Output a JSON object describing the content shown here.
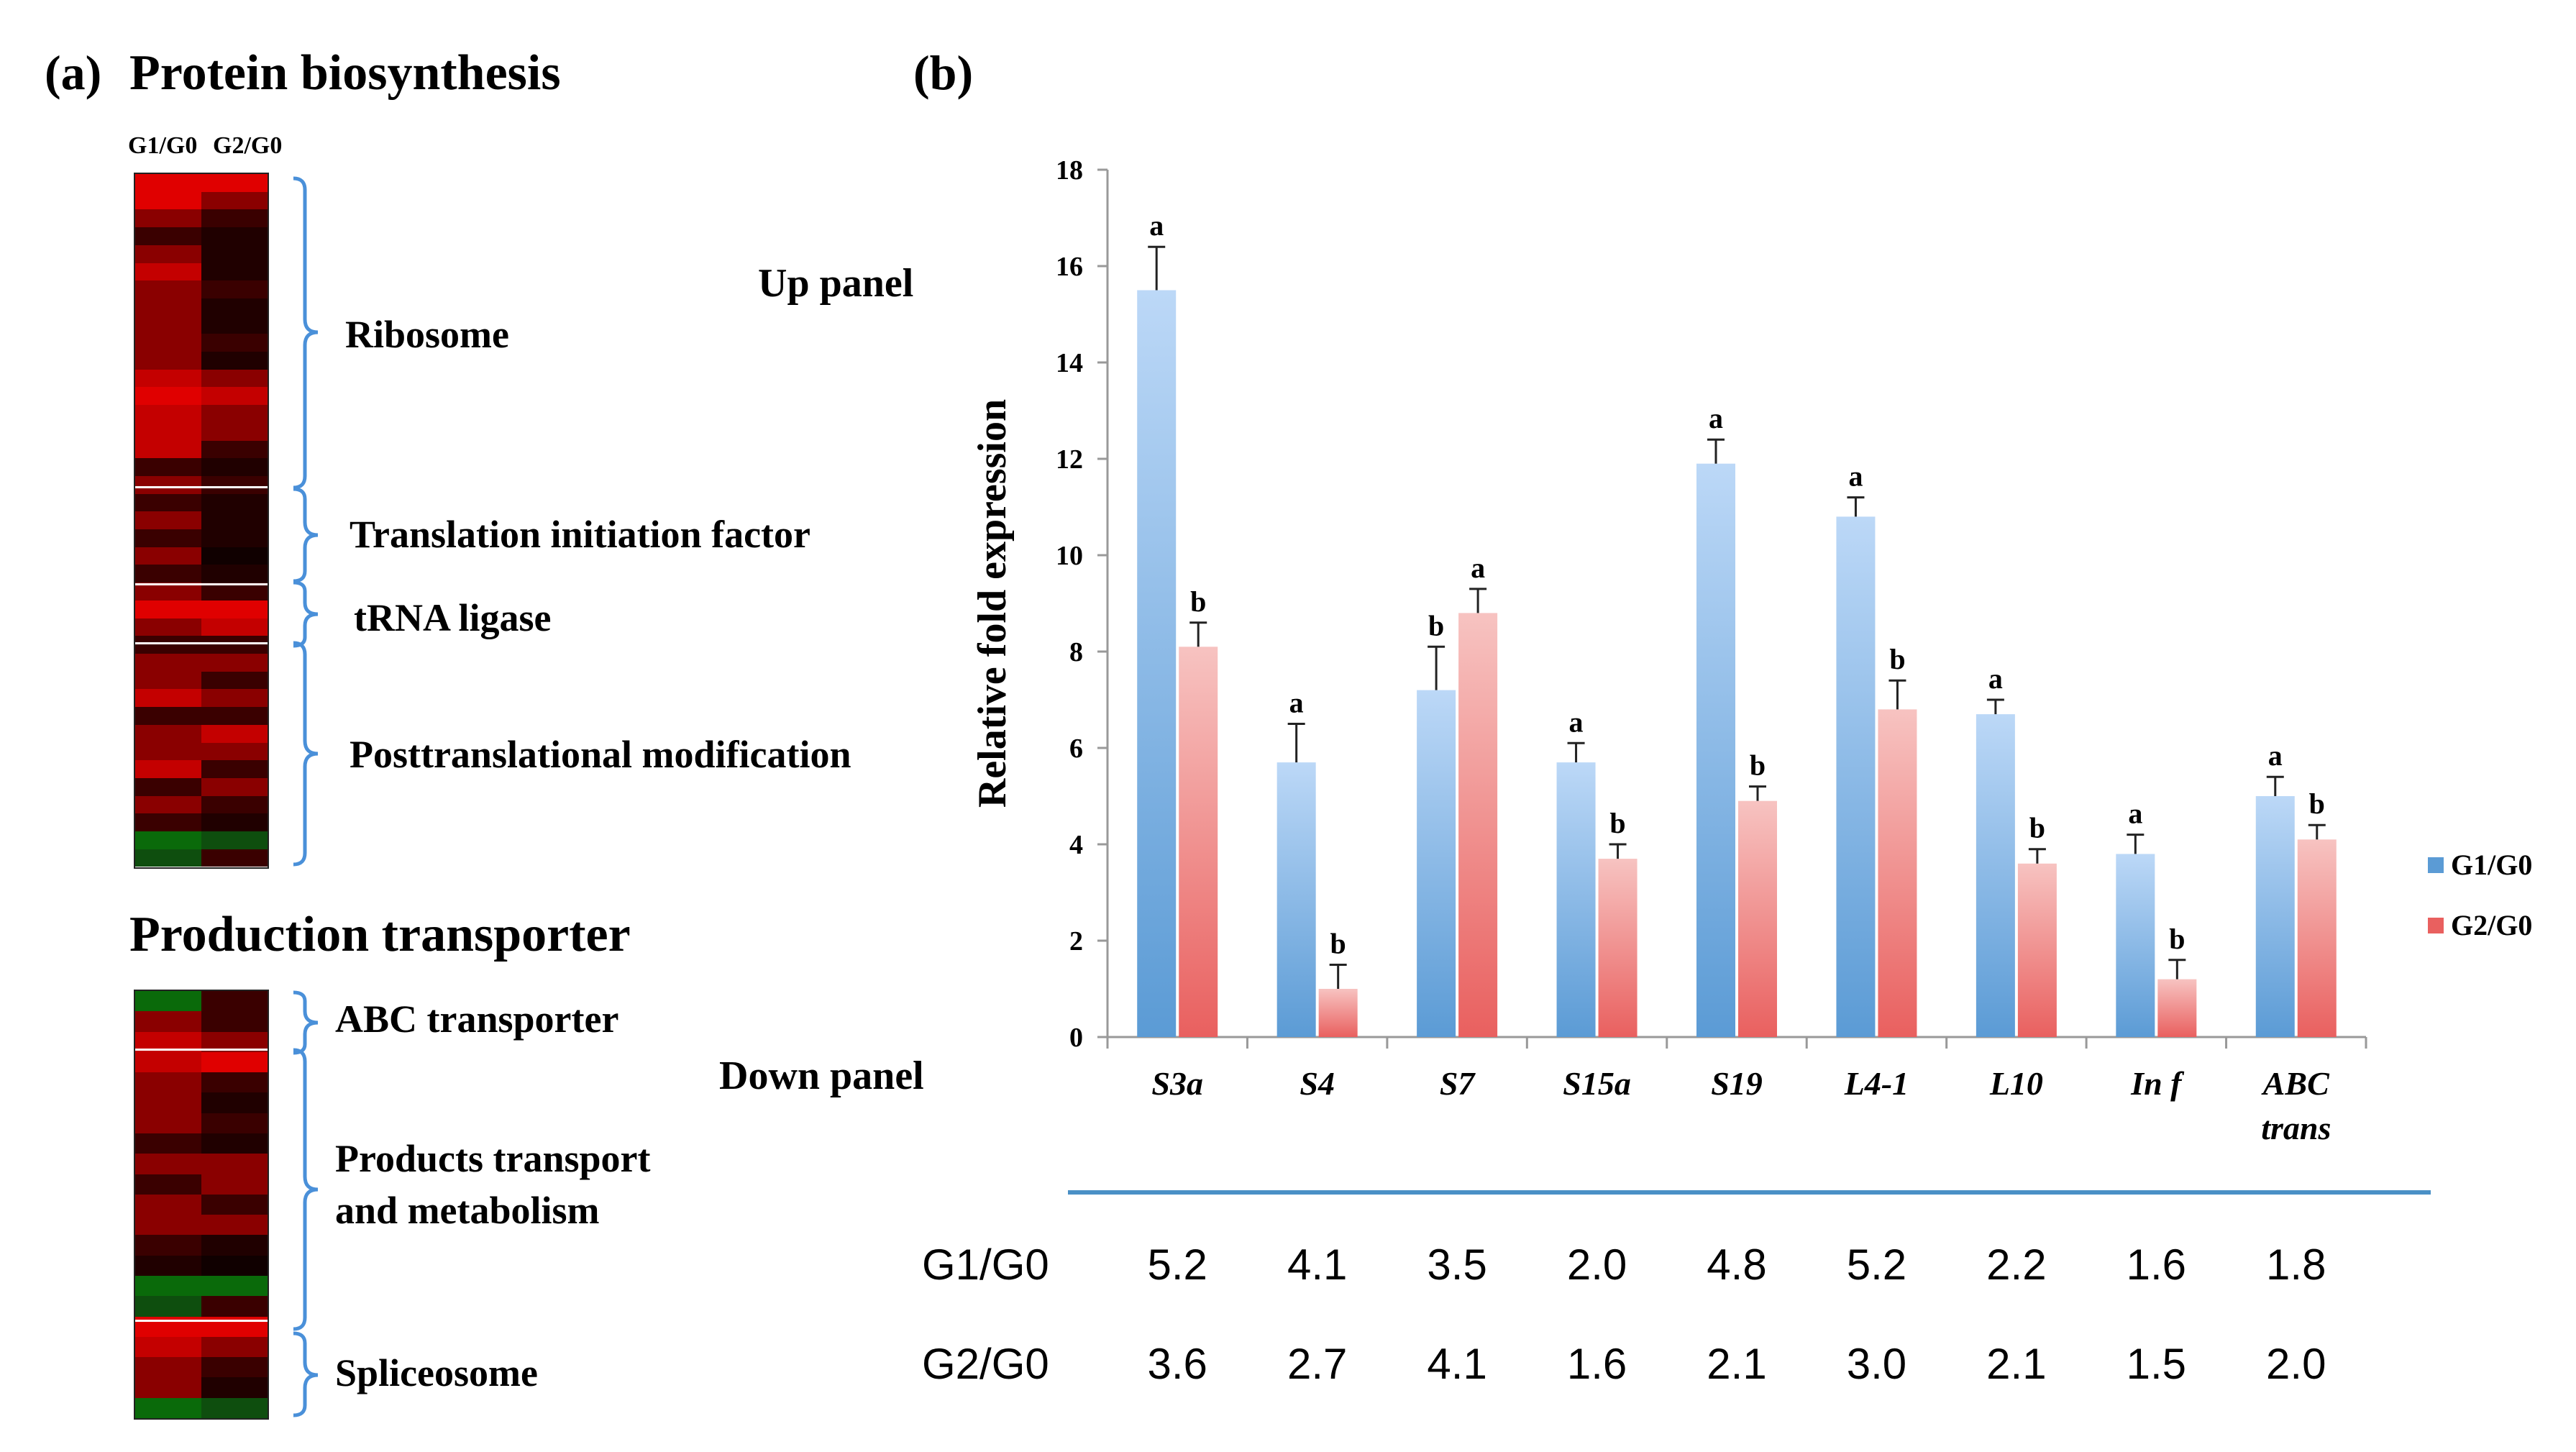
{
  "panel_a": {
    "label": "(a)",
    "title": "Protein biosynthesis",
    "col_headers": [
      "G1/G0",
      "G2/G0"
    ],
    "groups": [
      "Ribosome",
      "Translation initiation factor",
      "tRNA ligase",
      "Posttranslational modification"
    ],
    "up_panel_label": "Up panel",
    "section2_title": "Production transporter",
    "groups2": [
      "ABC transporter",
      "Products transport",
      "and metabolism",
      "Spliceosome"
    ],
    "down_panel_label": "Down panel",
    "colors": {
      "high": "#e00000",
      "mid": "#700000",
      "low": "#100000",
      "neg": "#0a6a0a"
    }
  },
  "panel_b": {
    "label": "(b)"
  },
  "chart_data": {
    "type": "bar",
    "ylabel": "Relative fold expression",
    "xlabel": "",
    "ylim": [
      0,
      18
    ],
    "yticks": [
      0,
      2,
      4,
      6,
      8,
      10,
      12,
      14,
      16,
      18
    ],
    "categories": [
      "S3a",
      "S4",
      "S7",
      "S15a",
      "S19",
      "L4-1",
      "L10",
      "In f",
      "ABC trans"
    ],
    "category_lines": [
      [
        "S3a"
      ],
      [
        "S4"
      ],
      [
        "S7"
      ],
      [
        "S15a"
      ],
      [
        "S19"
      ],
      [
        "L4-1"
      ],
      [
        "L10"
      ],
      [
        "In f"
      ],
      [
        "ABC",
        "trans"
      ]
    ],
    "series": [
      {
        "name": "G1/G0",
        "color": "#5b9bd5",
        "values": [
          15.5,
          5.7,
          7.2,
          5.7,
          11.9,
          10.8,
          6.7,
          3.8,
          5.0
        ],
        "errors": [
          0.9,
          0.8,
          0.9,
          0.4,
          0.5,
          0.4,
          0.3,
          0.4,
          0.4
        ],
        "letters": [
          "a",
          "a",
          "b",
          "a",
          "a",
          "a",
          "a",
          "a",
          "a"
        ]
      },
      {
        "name": "G2/G0",
        "color": "#e9605f",
        "values": [
          8.1,
          1.0,
          8.8,
          3.7,
          4.9,
          6.8,
          3.6,
          1.2,
          4.1
        ],
        "errors": [
          0.5,
          0.5,
          0.5,
          0.3,
          0.3,
          0.6,
          0.3,
          0.4,
          0.3
        ],
        "letters": [
          "b",
          "b",
          "a",
          "b",
          "b",
          "b",
          "b",
          "b",
          "b"
        ]
      }
    ],
    "legend": "right",
    "table": {
      "rows": [
        {
          "name": "G1/G0",
          "values": [
            "5.2",
            "4.1",
            "3.5",
            "2.0",
            "4.8",
            "5.2",
            "2.2",
            "1.6",
            "1.8"
          ]
        },
        {
          "name": "G2/G0",
          "values": [
            "3.6",
            "2.7",
            "4.1",
            "1.6",
            "2.1",
            "3.0",
            "2.1",
            "1.5",
            "2.0"
          ]
        }
      ]
    }
  }
}
